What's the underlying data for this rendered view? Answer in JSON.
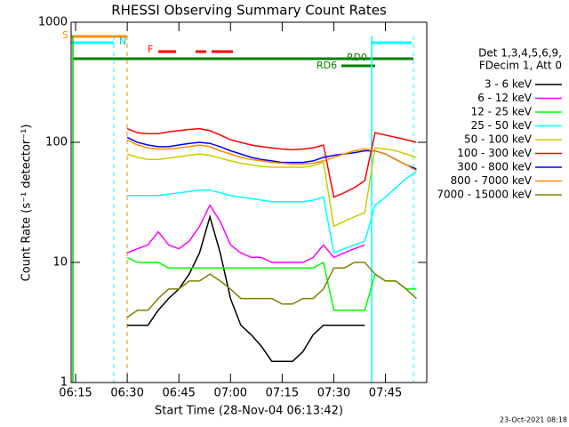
{
  "chart_data": {
    "type": "line",
    "title": "RHESSI Observing Summary Count Rates",
    "xlabel": "Start Time (28-Nov-04 06:13:42)",
    "ylabel": "Count Rate (s⁻¹ detector⁻¹)",
    "footer": "23-Oct-2021 08:18",
    "legend_header": [
      "Det 1,3,4,5,6,9,",
      "FDecim 1, Att 0"
    ],
    "annotations": [
      "S",
      "N",
      "F",
      "RD0",
      "RD6"
    ],
    "log_y": true,
    "xlim": [
      13.7,
      117
    ],
    "xticks": [
      {
        "value": 15,
        "label": "06:15"
      },
      {
        "value": 30,
        "label": "06:30"
      },
      {
        "value": 45,
        "label": "06:45"
      },
      {
        "value": 60,
        "label": "07:00"
      },
      {
        "value": 75,
        "label": "07:15"
      },
      {
        "value": 90,
        "label": "07:30"
      },
      {
        "value": 105,
        "label": "07:45"
      }
    ],
    "ylim": [
      1,
      1000
    ],
    "yticks": [
      1,
      10,
      100,
      1000
    ],
    "x": [
      30,
      33,
      36,
      39,
      42,
      45,
      48,
      51,
      54,
      57,
      60,
      63,
      66,
      69,
      72,
      75,
      78,
      81,
      84,
      87,
      90,
      93,
      96,
      99,
      102,
      105,
      108,
      111,
      114
    ],
    "series": [
      {
        "name": "3 - 6 keV",
        "color": "#000000",
        "values": [
          3,
          3,
          3,
          4,
          5,
          6,
          8,
          12,
          24,
          12,
          5,
          3,
          2.5,
          2,
          1.5,
          1.5,
          1.5,
          1.8,
          2.5,
          3,
          3,
          3,
          3,
          3,
          null,
          null,
          null,
          null,
          null
        ]
      },
      {
        "name": "6 - 12 keV",
        "color": "#ff00ff",
        "values": [
          12,
          13,
          14,
          18,
          14,
          13,
          15,
          20,
          30,
          22,
          14,
          12,
          11,
          11,
          10,
          10,
          10,
          10,
          11,
          14,
          11,
          12,
          13,
          14,
          null,
          null,
          null,
          null,
          null
        ]
      },
      {
        "name": "12 - 25 keV",
        "color": "#00ff00",
        "values": [
          11,
          10,
          10,
          10,
          9,
          9,
          9,
          9,
          9,
          9,
          9,
          9,
          9,
          9,
          9,
          9,
          9,
          9,
          9,
          10,
          4,
          4,
          4,
          4,
          8,
          7,
          7,
          6,
          6
        ]
      },
      {
        "name": "25 - 50 keV",
        "color": "#00ffff",
        "values": [
          36,
          36,
          36,
          36,
          37,
          38,
          39,
          40,
          40,
          38,
          36,
          35,
          34,
          33,
          32,
          32,
          32,
          32,
          33,
          35,
          12,
          13,
          14,
          15,
          30,
          35,
          42,
          50,
          57
        ]
      },
      {
        "name": "50 - 100 keV",
        "color": "#cccc00",
        "values": [
          80,
          75,
          72,
          72,
          74,
          76,
          78,
          80,
          78,
          74,
          70,
          67,
          65,
          63,
          62,
          62,
          62,
          62,
          64,
          68,
          20,
          22,
          24,
          26,
          90,
          88,
          85,
          80,
          75
        ]
      },
      {
        "name": "100 - 300 keV",
        "color": "#ff0000",
        "values": [
          130,
          120,
          118,
          118,
          122,
          125,
          128,
          130,
          125,
          115,
          105,
          100,
          95,
          92,
          90,
          88,
          87,
          88,
          90,
          95,
          35,
          38,
          42,
          48,
          120,
          115,
          110,
          105,
          100
        ]
      },
      {
        "name": "300 - 800 keV",
        "color": "#0000ff",
        "values": [
          110,
          100,
          95,
          92,
          92,
          95,
          98,
          100,
          98,
          92,
          85,
          80,
          75,
          72,
          70,
          68,
          68,
          68,
          70,
          75,
          78,
          80,
          82,
          85,
          85,
          80,
          72,
          65,
          60
        ]
      },
      {
        "name": "800 - 7000 keV",
        "color": "#ff8c00",
        "values": [
          105,
          95,
          90,
          88,
          88,
          90,
          92,
          95,
          92,
          85,
          80,
          75,
          72,
          70,
          68,
          67,
          66,
          66,
          67,
          70,
          75,
          80,
          85,
          88,
          85,
          80,
          72,
          65,
          58
        ]
      },
      {
        "name": "7000 - 15000 keV",
        "color": "#808000",
        "values": [
          3.5,
          4,
          4,
          5,
          6,
          6,
          7,
          7,
          8,
          7,
          6,
          5,
          5,
          5,
          5,
          4.5,
          4.5,
          5,
          5,
          6,
          9,
          9,
          10,
          10,
          8,
          7,
          7,
          6,
          5
        ]
      }
    ]
  }
}
